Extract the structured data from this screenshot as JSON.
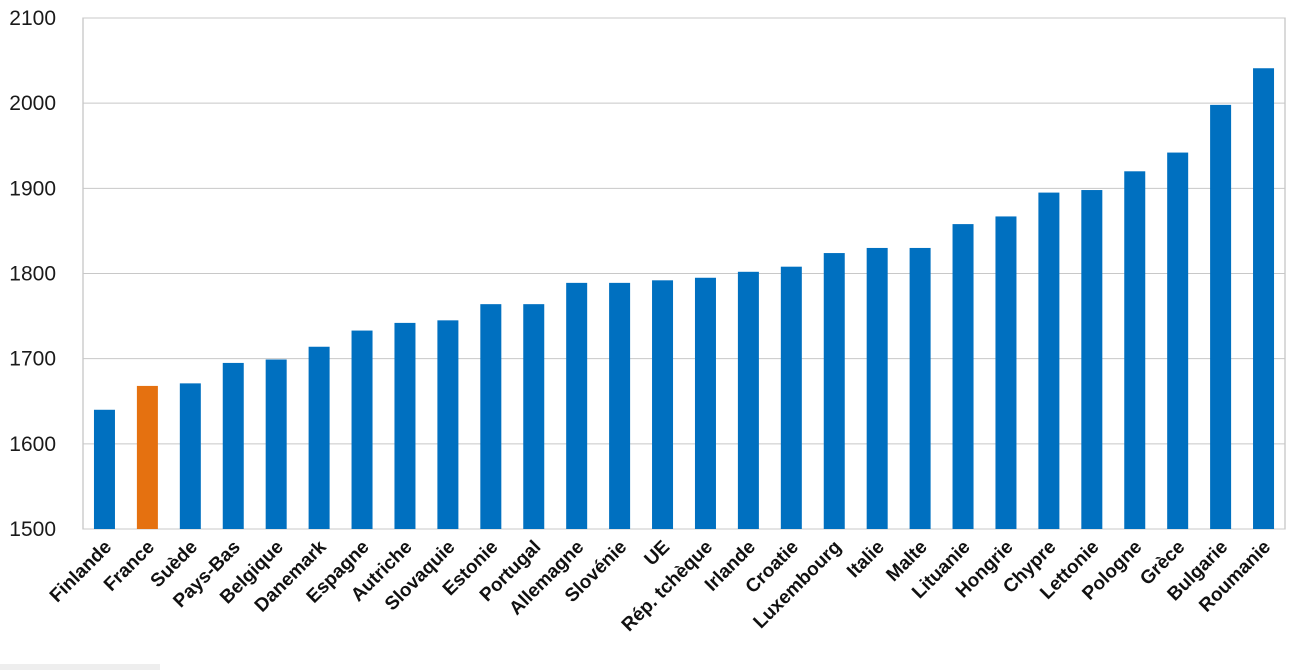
{
  "chart_data": {
    "type": "bar",
    "title": "",
    "xlabel": "",
    "ylabel": "",
    "ylim": [
      1500,
      2100
    ],
    "yticks": [
      1500,
      1600,
      1700,
      1800,
      1900,
      2000,
      2100
    ],
    "grid": true,
    "legend": "none",
    "categories": [
      "Finlande",
      "France",
      "Suède",
      "Pays-Bas",
      "Belgique",
      "Danemark",
      "Espagne",
      "Autriche",
      "Slovaquie",
      "Estonie",
      "Portugal",
      "Allemagne",
      "Slovénie",
      "UE",
      "Rép. tchèque",
      "Irlande",
      "Croatie",
      "Luxembourg",
      "Italie",
      "Malte",
      "Lituanie",
      "Hongrie",
      "Chypre",
      "Lettonie",
      "Pologne",
      "Grèce",
      "Bulgarie",
      "Roumanie"
    ],
    "values": [
      1640,
      1668,
      1671,
      1695,
      1699,
      1714,
      1733,
      1742,
      1745,
      1764,
      1764,
      1789,
      1789,
      1792,
      1795,
      1802,
      1808,
      1824,
      1830,
      1830,
      1858,
      1867,
      1895,
      1898,
      1920,
      1942,
      1998,
      2041
    ],
    "colors": {
      "default": "#0070c0",
      "highlight": "#e57110",
      "highlight_category": "France"
    }
  }
}
